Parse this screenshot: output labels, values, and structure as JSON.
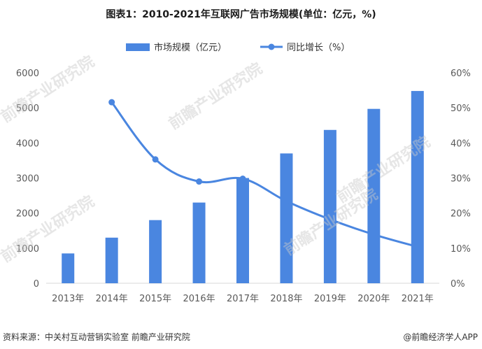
{
  "title": "图表1：2010-2021年互联网广告市场规模(单位：亿元，%)",
  "watermark_text": "前瞻产业研究院",
  "footer": {
    "source": "资料来源：中关村互动营销实验室 前瞻产业研究院",
    "brand": "@前瞻经济学人APP"
  },
  "colors": {
    "bar": "#4a86e0",
    "line": "#4a86e0",
    "axis_text": "#595959"
  },
  "chart_data": {
    "type": "bar",
    "title": "图表1：2010-2021年互联网广告市场规模(单位：亿元，%)",
    "categories": [
      "2013年",
      "2014年",
      "2015年",
      "2016年",
      "2017年",
      "2018年",
      "2019年",
      "2020年",
      "2021年"
    ],
    "series": [
      {
        "name": "市场规模（亿元）",
        "type": "bar",
        "axis": "left",
        "values": [
          850,
          1300,
          1800,
          2300,
          3000,
          3700,
          4370,
          4970,
          5480
        ]
      },
      {
        "name": "同比增长（%）",
        "type": "line",
        "axis": "right",
        "values": [
          null,
          51.6,
          35.3,
          29.0,
          29.8,
          23.4,
          18.2,
          13.9,
          10.4
        ]
      }
    ],
    "y_left": {
      "ylim": [
        0,
        6000
      ],
      "ticks": [
        "0",
        "1000",
        "2000",
        "3000",
        "4000",
        "5000",
        "6000"
      ]
    },
    "y_right": {
      "ylim": [
        0,
        60
      ],
      "ticks": [
        "0%",
        "10%",
        "20%",
        "30%",
        "40%",
        "50%",
        "60%"
      ]
    },
    "legend": "top-center",
    "grid": false
  }
}
